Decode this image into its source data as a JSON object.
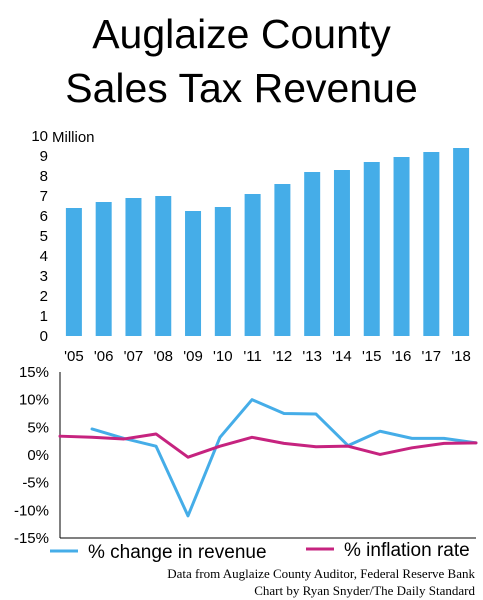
{
  "title_line1": "Auglaize County",
  "title_line2": "Sales Tax Revenue",
  "credit_line1": "Data from Auglaize County Auditor, Federal Reserve Bank",
  "credit_line2": "Chart by Ryan Snyder/The Daily Standard",
  "colors": {
    "bars": "#45ade8",
    "revenue_line": "#45ade8",
    "inflation_line": "#c6237f"
  },
  "chart_data": [
    {
      "type": "bar",
      "categories": [
        "'05",
        "'06",
        "'07",
        "'08",
        "'09",
        "'10",
        "'11",
        "'12",
        "'13",
        "'14",
        "'15",
        "'16",
        "'17",
        "'18"
      ],
      "values": [
        6.4,
        6.7,
        6.9,
        7.0,
        6.25,
        6.45,
        7.1,
        7.6,
        8.2,
        8.3,
        8.7,
        8.95,
        9.2,
        9.4
      ],
      "unit_label": "Million",
      "ylim": [
        0,
        10
      ],
      "yticks": [
        0,
        1,
        2,
        3,
        4,
        5,
        6,
        7,
        8,
        9,
        10
      ],
      "grid": false
    },
    {
      "type": "line",
      "x": [
        "'05",
        "'06",
        "'07",
        "'08",
        "'09",
        "'10",
        "'11",
        "'12",
        "'13",
        "'14",
        "'15",
        "'16",
        "'17",
        "'18"
      ],
      "series": [
        {
          "name": "% change in revenue",
          "values": [
            null,
            4.7,
            3.0,
            1.6,
            -11.0,
            3.2,
            10.0,
            7.5,
            7.4,
            1.7,
            4.3,
            3.0,
            3.0,
            2.2
          ]
        },
        {
          "name": "% inflation rate",
          "values": [
            3.4,
            3.2,
            2.9,
            3.8,
            -0.4,
            1.6,
            3.2,
            2.1,
            1.5,
            1.6,
            0.1,
            1.3,
            2.1,
            2.2
          ]
        }
      ],
      "ylim": [
        -15,
        15
      ],
      "yticks": [
        "15%",
        "10%",
        "5%",
        "0%",
        "-5%",
        "-10%",
        "-15%"
      ],
      "legend": "bottom",
      "grid": false
    }
  ]
}
